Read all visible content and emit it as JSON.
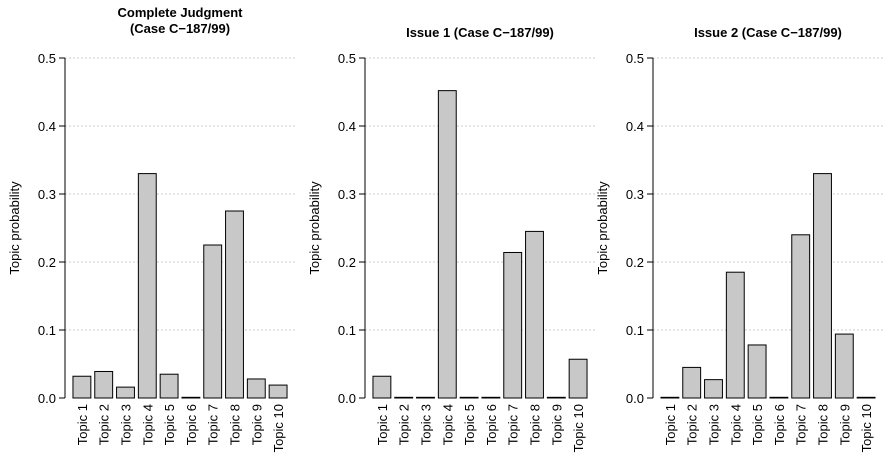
{
  "chart_data": [
    {
      "type": "bar",
      "title": [
        "Complete Judgment",
        "(Case C−187/99)"
      ],
      "ylabel": "Topic probability",
      "ylim": [
        0,
        0.5
      ],
      "yticks": [
        "0.0",
        "0.1",
        "0.2",
        "0.3",
        "0.4",
        "0.5"
      ],
      "grid": true,
      "categories": [
        "Topic 1",
        "Topic 2",
        "Topic 3",
        "Topic 4",
        "Topic 5",
        "Topic 6",
        "Topic 7",
        "Topic 8",
        "Topic 9",
        "Topic 10"
      ],
      "values": [
        0.032,
        0.039,
        0.016,
        0.33,
        0.035,
        0.001,
        0.225,
        0.275,
        0.028,
        0.019
      ]
    },
    {
      "type": "bar",
      "title": [
        "Issue 1 (Case C−187/99)"
      ],
      "ylabel": "Topic probability",
      "ylim": [
        0,
        0.5
      ],
      "yticks": [
        "0.0",
        "0.1",
        "0.2",
        "0.3",
        "0.4",
        "0.5"
      ],
      "grid": true,
      "categories": [
        "Topic 1",
        "Topic 2",
        "Topic 3",
        "Topic 4",
        "Topic 5",
        "Topic 6",
        "Topic 7",
        "Topic 8",
        "Topic 9",
        "Topic 10"
      ],
      "values": [
        0.032,
        0.001,
        0.001,
        0.452,
        0.001,
        0.001,
        0.214,
        0.245,
        0.001,
        0.057
      ]
    },
    {
      "type": "bar",
      "title": [
        "Issue 2 (Case C−187/99)"
      ],
      "ylabel": "Topic probability",
      "ylim": [
        0,
        0.5
      ],
      "yticks": [
        "0.0",
        "0.1",
        "0.2",
        "0.3",
        "0.4",
        "0.5"
      ],
      "grid": true,
      "categories": [
        "Topic 1",
        "Topic 2",
        "Topic 3",
        "Topic 4",
        "Topic 5",
        "Topic 6",
        "Topic 7",
        "Topic 8",
        "Topic 9",
        "Topic 10"
      ],
      "values": [
        0.001,
        0.045,
        0.027,
        0.185,
        0.078,
        0.001,
        0.24,
        0.33,
        0.094,
        0.001
      ]
    }
  ]
}
